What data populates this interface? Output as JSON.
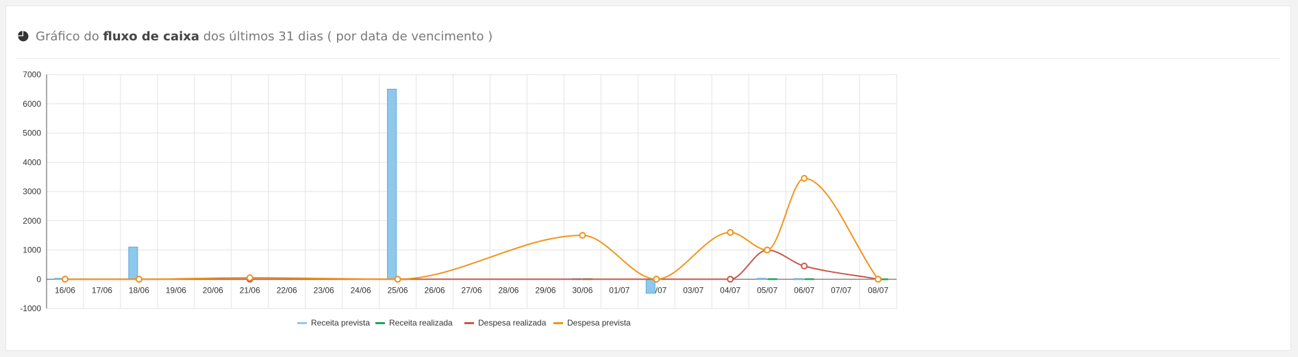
{
  "panel": {
    "title_prefix": "Gráfico do ",
    "title_bold": "fluxo de caixa",
    "title_suffix": " dos últimos 31 dias ( por data de vencimento )",
    "icon": "pie-chart-icon"
  },
  "colors": {
    "receita_prevista": "#8ec9ed",
    "receita_realizada": "#1fa35a",
    "despesa_realizada": "#c8574a",
    "despesa_prevista": "#f0941b"
  },
  "chart_data": {
    "type": "bar",
    "categories": [
      "16/06",
      "17/06",
      "18/06",
      "19/06",
      "20/06",
      "21/06",
      "22/06",
      "23/06",
      "24/06",
      "25/06",
      "26/06",
      "27/06",
      "28/06",
      "29/06",
      "30/06",
      "01/07",
      "02/07",
      "03/07",
      "04/07",
      "05/07",
      "06/07",
      "07/07",
      "08/07"
    ],
    "ylim": [
      -1000,
      7000
    ],
    "yticks": [
      -1000,
      0,
      1000,
      2000,
      3000,
      4000,
      5000,
      6000,
      7000
    ],
    "grid": true,
    "legend_position": "bottom",
    "series": [
      {
        "name": "Receita prevista",
        "kind": "bar",
        "values": [
          30,
          0,
          1100,
          0,
          0,
          0,
          0,
          0,
          0,
          6500,
          0,
          0,
          0,
          0,
          20,
          0,
          -480,
          0,
          0,
          30,
          20,
          0,
          0
        ]
      },
      {
        "name": "Receita realizada",
        "kind": "bar",
        "values": [
          0,
          0,
          0,
          0,
          0,
          0,
          0,
          0,
          0,
          20,
          0,
          0,
          0,
          0,
          20,
          0,
          0,
          0,
          0,
          20,
          20,
          0,
          15
        ]
      },
      {
        "name": "Despesa realizada",
        "kind": "line",
        "x": [
          "16/06",
          "18/06",
          "21/06",
          "25/06",
          "02/07",
          "04/07",
          "05/07",
          "06/07",
          "08/07"
        ],
        "values": [
          0,
          0,
          0,
          0,
          0,
          0,
          1000,
          450,
          0
        ]
      },
      {
        "name": "Despesa prevista",
        "kind": "line",
        "x": [
          "16/06",
          "18/06",
          "21/06",
          "25/06",
          "30/06",
          "02/07",
          "04/07",
          "05/07",
          "06/07",
          "08/07"
        ],
        "values": [
          0,
          0,
          50,
          0,
          1500,
          0,
          1600,
          1000,
          3450,
          0
        ]
      }
    ]
  }
}
